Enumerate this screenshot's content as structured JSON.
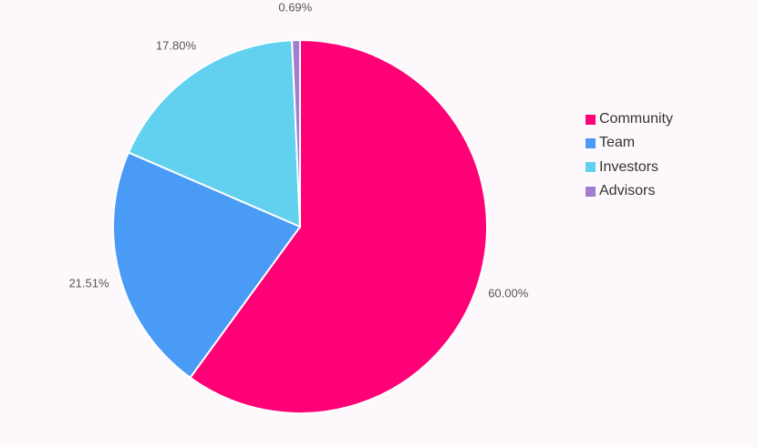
{
  "chart_data": {
    "type": "pie",
    "start_angle_deg": 0,
    "direction": "clockwise",
    "slices": [
      {
        "name": "Community",
        "value": 60.0,
        "label": "60.00%",
        "color": "#ff0077"
      },
      {
        "name": "Team",
        "value": 21.51,
        "label": "21.51%",
        "color": "#4a9bf5"
      },
      {
        "name": "Investors",
        "value": 17.8,
        "label": "17.80%",
        "color": "#62d0ef"
      },
      {
        "name": "Advisors",
        "value": 0.69,
        "label": "0.69%",
        "color": "#a17dd0"
      }
    ],
    "legend": {
      "placement": "right"
    }
  },
  "legend": {
    "items": [
      {
        "label": "Community",
        "color": "#ff0077"
      },
      {
        "label": "Team",
        "color": "#4a9bf5"
      },
      {
        "label": "Investors",
        "color": "#62d0ef"
      },
      {
        "label": "Advisors",
        "color": "#a17dd0"
      }
    ]
  }
}
